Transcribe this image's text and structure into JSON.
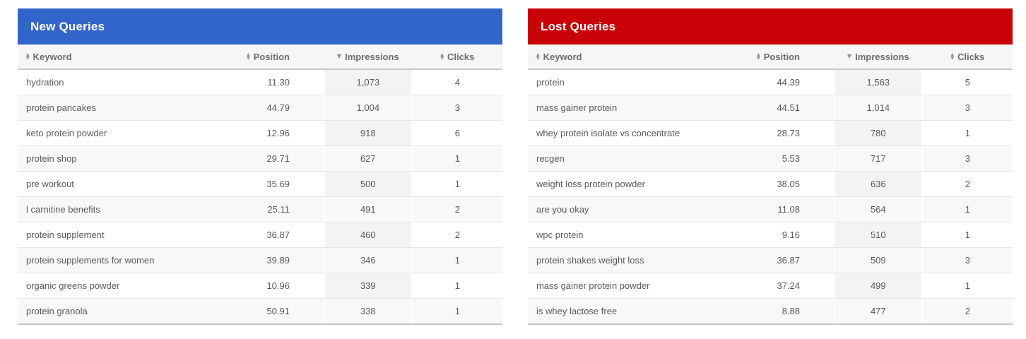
{
  "icons": {
    "sort_up": "▲",
    "sort_down": "▼",
    "sort_desc": "▼"
  },
  "colors": {
    "new_queries_accent": "#3265c9",
    "lost_queries_accent": "#c90207",
    "header_row_bg": "#f6f6f6",
    "stripe_bg": "#f8f8f8",
    "highlight_col_bg": "#efefef",
    "title_text": "#ffffff"
  },
  "tables": [
    {
      "name": "new-queries",
      "title": "New Queries",
      "accent_color": "#3265c9",
      "columns": [
        {
          "key": "keyword",
          "label": "Keyword",
          "sort": "both"
        },
        {
          "key": "position",
          "label": "Position",
          "sort": "both"
        },
        {
          "key": "impressions",
          "label": "Impressions",
          "sort": "desc",
          "highlight": true
        },
        {
          "key": "clicks",
          "label": "Clicks",
          "sort": "both"
        }
      ],
      "rows": [
        {
          "keyword": "hydration",
          "position": "11.30",
          "impressions": "1,073",
          "clicks": "4"
        },
        {
          "keyword": "protein pancakes",
          "position": "44.79",
          "impressions": "1,004",
          "clicks": "3"
        },
        {
          "keyword": "keto protein powder",
          "position": "12.96",
          "impressions": "918",
          "clicks": "6"
        },
        {
          "keyword": "protein shop",
          "position": "29.71",
          "impressions": "627",
          "clicks": "1"
        },
        {
          "keyword": "pre workout",
          "position": "35.69",
          "impressions": "500",
          "clicks": "1"
        },
        {
          "keyword": "l carnitine benefits",
          "position": "25.11",
          "impressions": "491",
          "clicks": "2"
        },
        {
          "keyword": "protein supplement",
          "position": "36.87",
          "impressions": "460",
          "clicks": "2"
        },
        {
          "keyword": "protein supplements for women",
          "position": "39.89",
          "impressions": "346",
          "clicks": "1"
        },
        {
          "keyword": "organic greens powder",
          "position": "10.96",
          "impressions": "339",
          "clicks": "1"
        },
        {
          "keyword": "protein granola",
          "position": "50.91",
          "impressions": "338",
          "clicks": "1"
        }
      ]
    },
    {
      "name": "lost-queries",
      "title": "Lost Queries",
      "accent_color": "#c90207",
      "columns": [
        {
          "key": "keyword",
          "label": "Keyword",
          "sort": "both"
        },
        {
          "key": "position",
          "label": "Position",
          "sort": "both"
        },
        {
          "key": "impressions",
          "label": "Impressions",
          "sort": "desc",
          "highlight": true
        },
        {
          "key": "clicks",
          "label": "Clicks",
          "sort": "both"
        }
      ],
      "rows": [
        {
          "keyword": "protein",
          "position": "44.39",
          "impressions": "1,563",
          "clicks": "5"
        },
        {
          "keyword": "mass gainer protein",
          "position": "44.51",
          "impressions": "1,014",
          "clicks": "3"
        },
        {
          "keyword": "whey protein isolate vs concentrate",
          "position": "28.73",
          "impressions": "780",
          "clicks": "1"
        },
        {
          "keyword": "recgen",
          "position": "5.53",
          "impressions": "717",
          "clicks": "3"
        },
        {
          "keyword": "weight loss protein powder",
          "position": "38.05",
          "impressions": "636",
          "clicks": "2"
        },
        {
          "keyword": "are you okay",
          "position": "11.08",
          "impressions": "564",
          "clicks": "1"
        },
        {
          "keyword": "wpc protein",
          "position": "9.16",
          "impressions": "510",
          "clicks": "1"
        },
        {
          "keyword": "protein shakes weight loss",
          "position": "36.87",
          "impressions": "509",
          "clicks": "3"
        },
        {
          "keyword": "mass gainer protein powder",
          "position": "37.24",
          "impressions": "499",
          "clicks": "1"
        },
        {
          "keyword": "is whey lactose free",
          "position": "8.88",
          "impressions": "477",
          "clicks": "2"
        }
      ]
    }
  ]
}
